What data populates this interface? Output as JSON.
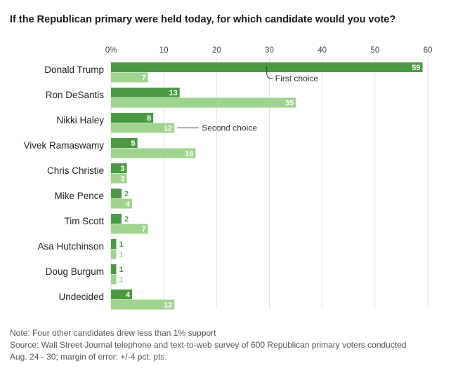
{
  "title": "If the Republican primary were held today, for which candidate would you vote?",
  "chart_data": {
    "type": "bar",
    "orientation": "horizontal",
    "categories": [
      "Donald Trump",
      "Ron DeSantis",
      "Nikki Haley",
      "Vivek Ramaswamy",
      "Chris Christie",
      "Mike Pence",
      "Tim Scott",
      "Asa Hutchinson",
      "Doug Burgum",
      "Undecided"
    ],
    "series": [
      {
        "name": "First choice",
        "color": "#4a9a42",
        "values": [
          59,
          13,
          8,
          5,
          3,
          2,
          2,
          1,
          1,
          4
        ]
      },
      {
        "name": "Second choice",
        "color": "#9fd48e",
        "values": [
          7,
          35,
          12,
          16,
          3,
          4,
          7,
          1,
          1,
          12
        ]
      }
    ],
    "x_ticks": [
      "0%",
      "10",
      "20",
      "30",
      "40",
      "50",
      "60"
    ],
    "xlim": [
      0,
      60
    ],
    "grid": true,
    "legend": "inline annotations"
  },
  "notes": [
    "Note: Four other candidates drew less than 1% support",
    "Source: Wall Street Journal telephone and text-to-web survey of 600 Republican primary voters conducted",
    "Aug. 24 - 30; margin of error: +/-4 pct. pts."
  ]
}
